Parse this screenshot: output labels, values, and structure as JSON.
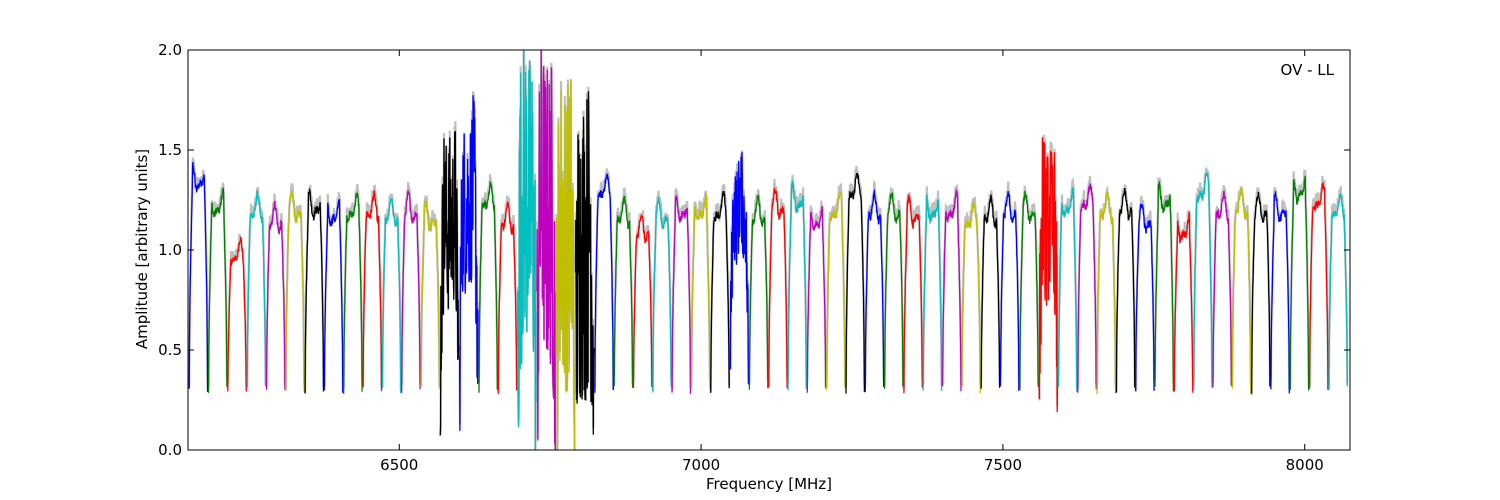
{
  "chart_data": {
    "type": "line",
    "title": "",
    "xlabel": "Frequency [MHz]",
    "ylabel": "Amplitude [arbitrary units]",
    "annotation": "OV - LL",
    "annotation_placement": "top-right",
    "xlim": [
      6150,
      8075
    ],
    "ylim": [
      0.0,
      2.0
    ],
    "xticks": [
      6500,
      7000,
      7500,
      8000
    ],
    "yticks": [
      0.0,
      0.5,
      1.0,
      1.5,
      2.0
    ],
    "xtick_labels": [
      "6500",
      "7000",
      "7500",
      "8000"
    ],
    "ytick_labels": [
      "0.0",
      "0.5",
      "1.0",
      "1.5",
      "2.0"
    ],
    "grid": false,
    "background_trace_color": "#bfbfbf",
    "colors": [
      "#0000ff",
      "#008000",
      "#ff0000",
      "#00bfbf",
      "#bf00bf",
      "#bfbf00",
      "#000000"
    ],
    "channel_width_mhz": 32,
    "channels_start_mhz": 6152,
    "channel_count": 60,
    "channel_plateau_levels": [
      1.35,
      1.22,
      0.98,
      1.2,
      1.15,
      1.2,
      1.22,
      1.18,
      1.2,
      1.2,
      1.18,
      1.2,
      1.16,
      1.15,
      1.25,
      1.25,
      1.15,
      1.25,
      1.2,
      1.1,
      1.05,
      1.3,
      1.18,
      1.1,
      1.17,
      1.2,
      1.2,
      1.2,
      1.2,
      1.18,
      1.22,
      1.25,
      1.15,
      1.2,
      1.3,
      1.2,
      1.2,
      1.18,
      1.2,
      1.2,
      1.15,
      1.18,
      1.2,
      1.2,
      1.15,
      1.22,
      1.25,
      1.2,
      1.22,
      1.15,
      1.25,
      1.1,
      1.3,
      1.2,
      1.22,
      1.2,
      1.2,
      1.3,
      1.25,
      1.2
    ]
  }
}
